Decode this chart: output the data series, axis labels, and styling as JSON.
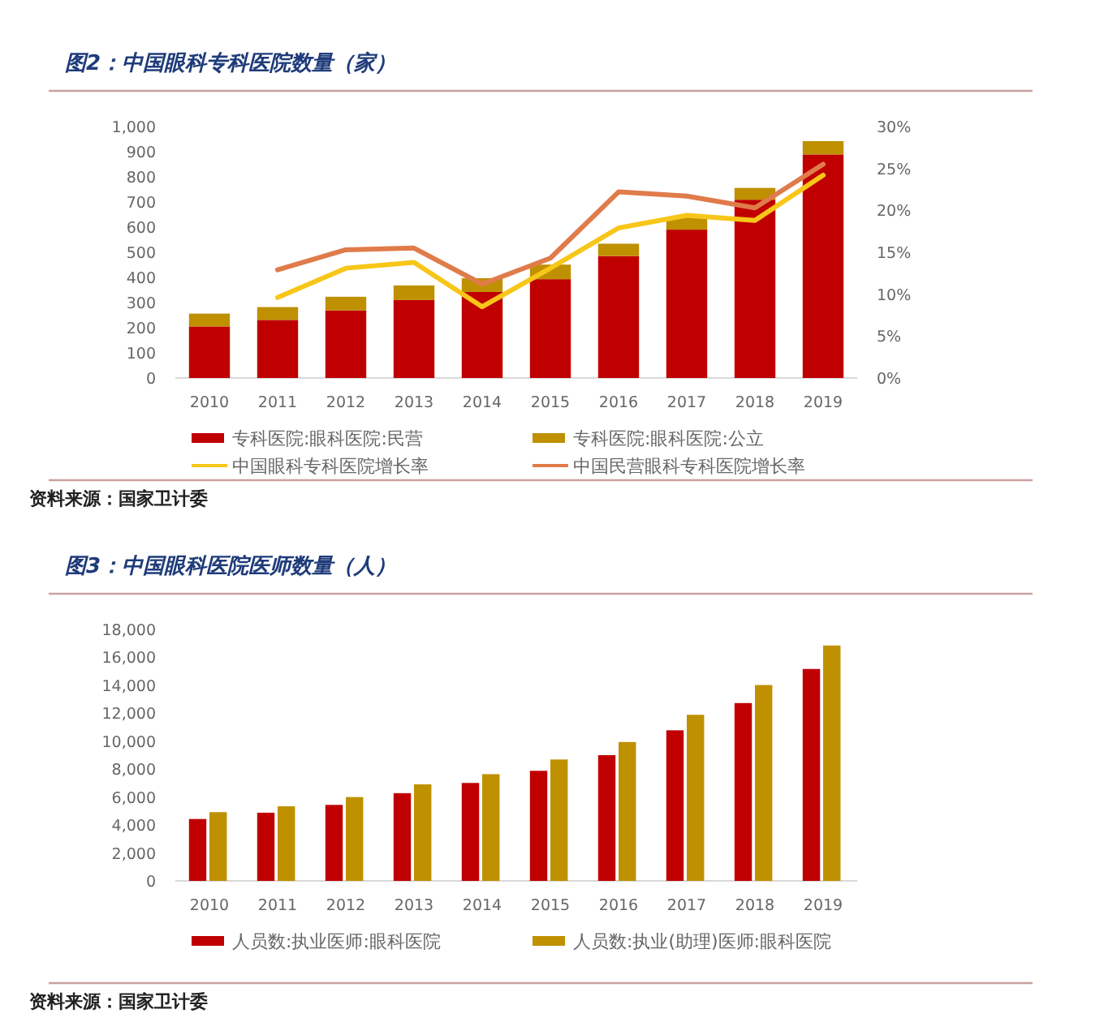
{
  "chart_data": [
    {
      "type": "bar",
      "title": "图2：中国眼科专科医院数量（家）",
      "categories": [
        "2010",
        "2011",
        "2012",
        "2013",
        "2014",
        "2015",
        "2016",
        "2017",
        "2018",
        "2019"
      ],
      "stacked": true,
      "series": [
        {
          "name": "专科医院:眼科医院:民营",
          "color": "#c00000",
          "values": [
            205,
            231,
            269,
            310,
            342,
            393,
            485,
            590,
            709,
            889
          ]
        },
        {
          "name": "专科医院:眼科医院:公立",
          "color": "#bf9000",
          "values": [
            51,
            51,
            54,
            58,
            55,
            58,
            49,
            51,
            47,
            53
          ]
        },
        {
          "name": "中国眼科专科医院增长率",
          "type": "line",
          "axis": "y2",
          "color": "#f7c618",
          "values": [
            null,
            9.6,
            13.1,
            13.8,
            8.5,
            13.1,
            17.9,
            19.4,
            18.8,
            24.2
          ]
        },
        {
          "name": "中国民营眼科专科医院增长率",
          "type": "line",
          "axis": "y2",
          "color": "#e07b4a",
          "values": [
            null,
            12.9,
            15.3,
            15.5,
            11.2,
            14.3,
            22.2,
            21.7,
            20.3,
            25.5
          ]
        }
      ],
      "ylim": [
        0,
        1000
      ],
      "yticks": [
        0,
        100,
        200,
        300,
        400,
        500,
        600,
        700,
        800,
        900,
        {
          "value": 1000,
          "label": "1,000"
        }
      ],
      "y2lim": [
        0,
        30
      ],
      "y2ticks": [
        {
          "value": 0,
          "label": "0%"
        },
        {
          "value": 5,
          "label": "5%"
        },
        {
          "value": 10,
          "label": "10%"
        },
        {
          "value": 15,
          "label": "15%"
        },
        {
          "value": 20,
          "label": "20%"
        },
        {
          "value": 25,
          "label": "25%"
        },
        {
          "value": 30,
          "label": "30%"
        }
      ],
      "legend": "bottom",
      "annotations": [
        "资料来源：国家卫计委"
      ]
    },
    {
      "type": "bar",
      "title": "图3：中国眼科医院医师数量（人）",
      "categories": [
        "2010",
        "2011",
        "2012",
        "2013",
        "2014",
        "2015",
        "2016",
        "2017",
        "2018",
        "2019"
      ],
      "series": [
        {
          "name": "人员数:执业医师:眼科医院",
          "color": "#c00000",
          "values": [
            4430,
            4880,
            5440,
            6280,
            7010,
            7880,
            9000,
            10780,
            12730,
            15170
          ]
        },
        {
          "name": "人员数:执业(助理)医师:眼科医院",
          "color": "#bf9000",
          "values": [
            4920,
            5340,
            6000,
            6910,
            7640,
            8690,
            9940,
            11890,
            14020,
            16850
          ]
        }
      ],
      "ylim": [
        0,
        18000
      ],
      "yticks": [
        0,
        {
          "value": 2000,
          "label": "2,000"
        },
        {
          "value": 4000,
          "label": "4,000"
        },
        {
          "value": 6000,
          "label": "6,000"
        },
        {
          "value": 8000,
          "label": "8,000"
        },
        {
          "value": 10000,
          "label": "10,000"
        },
        {
          "value": 12000,
          "label": "12,000"
        },
        {
          "value": 14000,
          "label": "14,000"
        },
        {
          "value": 16000,
          "label": "16,000"
        },
        {
          "value": 18000,
          "label": "18,000"
        }
      ],
      "legend": "bottom",
      "annotations": [
        "资料来源：国家卫计委"
      ]
    }
  ]
}
